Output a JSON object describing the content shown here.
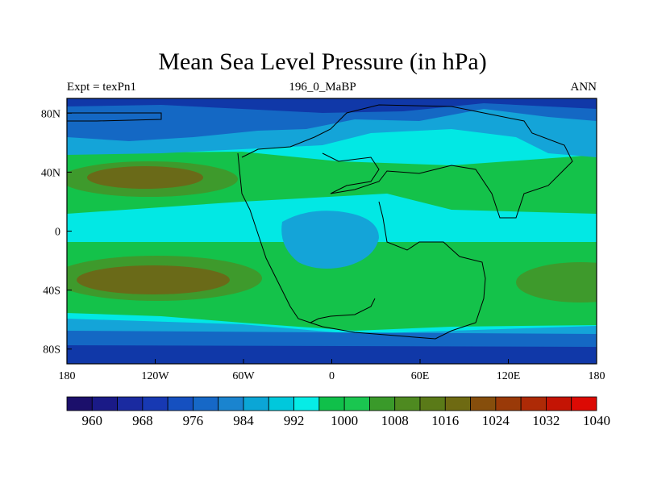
{
  "title": "Mean Sea Level Pressure (in hPa)",
  "left_string": "Expt = texPn1",
  "center_string": "196_0_MaBP",
  "right_string": "ANN",
  "map": {
    "lon_range": [
      -180,
      180
    ],
    "lat_range": [
      -90,
      90
    ],
    "x_ticks": [
      {
        "value": -180,
        "label": "180"
      },
      {
        "value": -120,
        "label": "120W"
      },
      {
        "value": -60,
        "label": "60W"
      },
      {
        "value": 0,
        "label": "0"
      },
      {
        "value": 60,
        "label": "60E"
      },
      {
        "value": 120,
        "label": "120E"
      },
      {
        "value": 180,
        "label": "180"
      }
    ],
    "y_ticks": [
      {
        "value": 80,
        "label": "80N"
      },
      {
        "value": 40,
        "label": "40N"
      },
      {
        "value": 0,
        "label": "0"
      },
      {
        "value": -40,
        "label": "40S"
      },
      {
        "value": -80,
        "label": "80S"
      }
    ]
  },
  "colorbar": {
    "colors": [
      "#1b0f6b",
      "#1a1a87",
      "#1a2aa0",
      "#1739b3",
      "#1550c0",
      "#1668c7",
      "#1a84cf",
      "#0ba6d6",
      "#00c8dc",
      "#06ece6",
      "#10c04a",
      "#1ac650",
      "#3a9a2a",
      "#4e8a20",
      "#5a7a18",
      "#6e6a12",
      "#864e0c",
      "#9a3a08",
      "#ae2a06",
      "#c41404",
      "#dc0a04"
    ],
    "labels": [
      {
        "index": 1,
        "text": "960"
      },
      {
        "index": 3,
        "text": "968"
      },
      {
        "index": 5,
        "text": "976"
      },
      {
        "index": 7,
        "text": "984"
      },
      {
        "index": 9,
        "text": "992"
      },
      {
        "index": 11,
        "text": "1000"
      },
      {
        "index": 13,
        "text": "1008"
      },
      {
        "index": 15,
        "text": "1016"
      },
      {
        "index": 17,
        "text": "1024"
      },
      {
        "index": 19,
        "text": "1032"
      },
      {
        "index": 21,
        "text": "1040"
      }
    ]
  },
  "colors": {
    "deep_blue": "#1038a8",
    "blue": "#1468c4",
    "light_blue": "#14a4d8",
    "cyan": "#02e8e4",
    "green": "#14c24a",
    "dark_green": "#3e9a2c",
    "olive": "#6a6a18",
    "coastline": "#000000"
  }
}
